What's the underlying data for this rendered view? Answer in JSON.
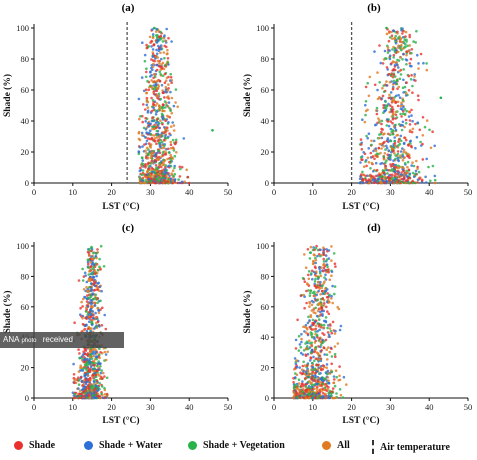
{
  "colors": {
    "shade": "#e8312e",
    "shade_water": "#2c6fd6",
    "shade_vegetation": "#27b24a",
    "all": "#e07b22"
  },
  "legend": {
    "shade": "Shade",
    "shade_water": "Shade + Water",
    "shade_vegetation": "Shade + Vegetation",
    "all": "All",
    "air_temperature": "Air temperature"
  },
  "overlay": {
    "text": "ANA",
    "small_text": "photo",
    "status": "received"
  },
  "chart_data": [
    {
      "panel": "(a)",
      "type": "scatter",
      "xlabel": "LST (°C)",
      "ylabel": "Shade (%)",
      "xlim": [
        0,
        50
      ],
      "ylim": [
        0,
        100
      ],
      "xticks": [
        0,
        10,
        20,
        30,
        40,
        50
      ],
      "yticks": [
        0,
        20,
        40,
        60,
        80,
        100
      ],
      "air_temperature": 24,
      "cloud": {
        "x_min": 27,
        "x_max": 40,
        "x_center": 32,
        "x_max_high_shade": 32,
        "outliers": [
          [
            31,
            100
          ],
          [
            46,
            34
          ]
        ]
      }
    },
    {
      "panel": "(b)",
      "type": "scatter",
      "xlabel": "LST (°C)",
      "ylabel": "Shade (%)",
      "xlim": [
        0,
        50
      ],
      "ylim": [
        0,
        100
      ],
      "xticks": [
        0,
        10,
        20,
        30,
        40,
        50
      ],
      "yticks": [
        0,
        20,
        40,
        60,
        80,
        100
      ],
      "air_temperature": 20,
      "cloud": {
        "x_min": 22,
        "x_max": 42,
        "x_center": 30,
        "x_max_high_shade": 33,
        "outliers": [
          [
            29,
            100
          ],
          [
            43,
            55
          ]
        ]
      }
    },
    {
      "panel": "(c)",
      "type": "scatter",
      "xlabel": "LST (°C)",
      "ylabel": "Shade (%)",
      "xlim": [
        0,
        50
      ],
      "ylim": [
        0,
        100
      ],
      "xticks": [
        0,
        10,
        20,
        30,
        40,
        50
      ],
      "yticks": [
        0,
        20,
        40,
        60,
        80,
        100
      ],
      "air_temperature": null,
      "cloud": {
        "x_min": 10,
        "x_max": 19,
        "x_center": 14,
        "x_max_high_shade": 16,
        "outliers": []
      }
    },
    {
      "panel": "(d)",
      "type": "scatter",
      "xlabel": "LST (°C)",
      "ylabel": "Shade (%)",
      "xlim": [
        0,
        50
      ],
      "ylim": [
        0,
        100
      ],
      "xticks": [
        0,
        10,
        20,
        30,
        40,
        50
      ],
      "yticks": [
        0,
        20,
        40,
        60,
        80,
        100
      ],
      "air_temperature": null,
      "cloud": {
        "x_min": 5,
        "x_max": 19,
        "x_center": 10,
        "x_max_high_shade": 13,
        "outliers": []
      }
    }
  ]
}
